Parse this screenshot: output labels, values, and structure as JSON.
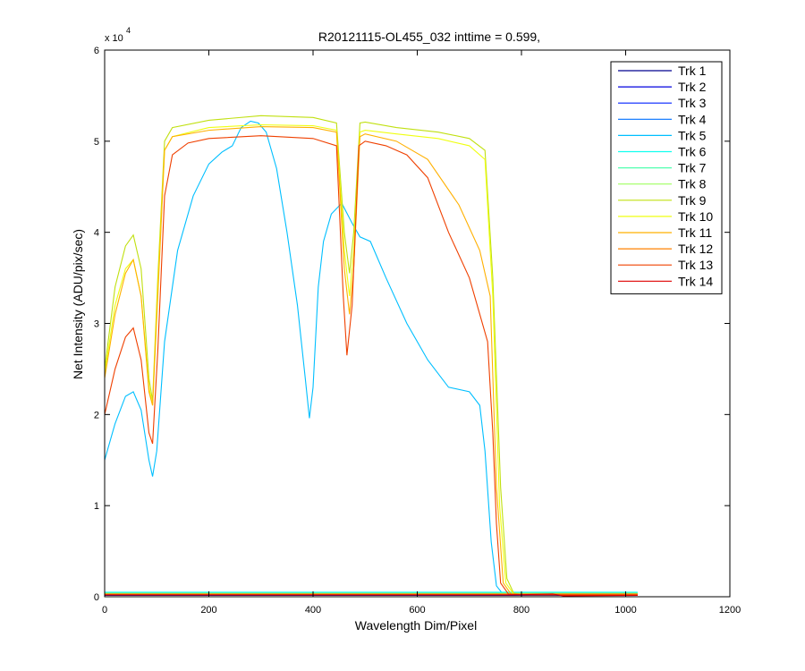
{
  "chart_data": {
    "type": "line",
    "title": "R20121115-OL455_032 inttime = 0.599,",
    "xlabel": "Wavelength Dim/Pixel",
    "ylabel": "Net Intensity (ADU/pix/sec)",
    "xlim": [
      0,
      1200
    ],
    "ylim": [
      0,
      60000
    ],
    "x_ticks": [
      "0",
      "200",
      "400",
      "600",
      "800",
      "1000",
      "1200"
    ],
    "y_ticks": [
      "0",
      "1",
      "2",
      "3",
      "4",
      "5",
      "6"
    ],
    "y_multiplier_base": "x 10",
    "y_multiplier_exp": "4",
    "grid": false,
    "legend_position": "top-right",
    "series": [
      {
        "name": "Trk 1",
        "color": "#00008F",
        "points": [
          [
            0,
            150
          ],
          [
            780,
            150
          ],
          [
            1023,
            150
          ]
        ]
      },
      {
        "name": "Trk 2",
        "color": "#0000DF",
        "points": [
          [
            0,
            250
          ],
          [
            780,
            250
          ],
          [
            1023,
            250
          ]
        ]
      },
      {
        "name": "Trk 3",
        "color": "#0020FF",
        "points": [
          [
            0,
            300
          ],
          [
            780,
            300
          ],
          [
            1023,
            300
          ]
        ]
      },
      {
        "name": "Trk 4",
        "color": "#0070FF",
        "points": [
          [
            0,
            350
          ],
          [
            780,
            350
          ],
          [
            1023,
            350
          ]
        ]
      },
      {
        "name": "Trk 5",
        "color": "#00BFFF",
        "points": [
          [
            0,
            15000
          ],
          [
            20,
            19000
          ],
          [
            40,
            22000
          ],
          [
            55,
            22500
          ],
          [
            70,
            20500
          ],
          [
            85,
            15000
          ],
          [
            92,
            13200
          ],
          [
            100,
            16000
          ],
          [
            115,
            28000
          ],
          [
            140,
            38000
          ],
          [
            170,
            44000
          ],
          [
            200,
            47500
          ],
          [
            225,
            48800
          ],
          [
            245,
            49500
          ],
          [
            262,
            51500
          ],
          [
            280,
            52200
          ],
          [
            295,
            52000
          ],
          [
            310,
            51000
          ],
          [
            330,
            47000
          ],
          [
            350,
            40000
          ],
          [
            370,
            32000
          ],
          [
            385,
            24000
          ],
          [
            393,
            19600
          ],
          [
            400,
            23000
          ],
          [
            410,
            34000
          ],
          [
            420,
            39000
          ],
          [
            435,
            42000
          ],
          [
            455,
            43200
          ],
          [
            475,
            41000
          ],
          [
            490,
            39500
          ],
          [
            510,
            39000
          ],
          [
            540,
            35000
          ],
          [
            580,
            30000
          ],
          [
            620,
            26000
          ],
          [
            660,
            23000
          ],
          [
            700,
            22500
          ],
          [
            720,
            21000
          ],
          [
            730,
            16000
          ],
          [
            742,
            6000
          ],
          [
            752,
            1200
          ],
          [
            765,
            250
          ],
          [
            800,
            200
          ],
          [
            1023,
            200
          ]
        ]
      },
      {
        "name": "Trk 6",
        "color": "#10FFEF",
        "points": [
          [
            0,
            500
          ],
          [
            780,
            500
          ],
          [
            1023,
            500
          ]
        ]
      },
      {
        "name": "Trk 7",
        "color": "#50FFAF",
        "points": [
          [
            0,
            400
          ],
          [
            780,
            400
          ],
          [
            1023,
            400
          ]
        ]
      },
      {
        "name": "Trk 8",
        "color": "#9FFF60",
        "points": [
          [
            0,
            350
          ],
          [
            780,
            350
          ],
          [
            1023,
            350
          ]
        ]
      },
      {
        "name": "Trk 9",
        "color": "#C0E010",
        "points": [
          [
            0,
            25000
          ],
          [
            20,
            34000
          ],
          [
            40,
            38500
          ],
          [
            55,
            39700
          ],
          [
            70,
            36000
          ],
          [
            85,
            24000
          ],
          [
            92,
            21500
          ],
          [
            102,
            35000
          ],
          [
            115,
            50000
          ],
          [
            130,
            51500
          ],
          [
            200,
            52300
          ],
          [
            300,
            52800
          ],
          [
            400,
            52600
          ],
          [
            445,
            52000
          ],
          [
            460,
            40000
          ],
          [
            470,
            35500
          ],
          [
            478,
            40000
          ],
          [
            490,
            52000
          ],
          [
            500,
            52100
          ],
          [
            560,
            51500
          ],
          [
            640,
            51000
          ],
          [
            700,
            50300
          ],
          [
            730,
            49000
          ],
          [
            745,
            35000
          ],
          [
            760,
            12000
          ],
          [
            772,
            2000
          ],
          [
            785,
            400
          ],
          [
            800,
            250
          ],
          [
            1023,
            200
          ]
        ]
      },
      {
        "name": "Trk 10",
        "color": "#EFFF10",
        "points": [
          [
            0,
            24500
          ],
          [
            20,
            32000
          ],
          [
            40,
            36000
          ],
          [
            55,
            37000
          ],
          [
            70,
            33000
          ],
          [
            85,
            23000
          ],
          [
            92,
            21000
          ],
          [
            102,
            34000
          ],
          [
            115,
            49000
          ],
          [
            130,
            50500
          ],
          [
            200,
            51500
          ],
          [
            300,
            51800
          ],
          [
            400,
            51700
          ],
          [
            445,
            51200
          ],
          [
            460,
            38000
          ],
          [
            470,
            33000
          ],
          [
            478,
            38000
          ],
          [
            490,
            51000
          ],
          [
            500,
            51200
          ],
          [
            560,
            50800
          ],
          [
            640,
            50300
          ],
          [
            700,
            49500
          ],
          [
            730,
            48000
          ],
          [
            745,
            33000
          ],
          [
            758,
            10000
          ],
          [
            770,
            1500
          ],
          [
            785,
            300
          ],
          [
            800,
            200
          ],
          [
            1023,
            200
          ]
        ]
      },
      {
        "name": "Trk 11",
        "color": "#FFB000",
        "points": [
          [
            0,
            24000
          ],
          [
            20,
            31000
          ],
          [
            40,
            35500
          ],
          [
            55,
            37000
          ],
          [
            70,
            33000
          ],
          [
            85,
            22500
          ],
          [
            92,
            21000
          ],
          [
            102,
            33000
          ],
          [
            115,
            49000
          ],
          [
            130,
            50500
          ],
          [
            200,
            51200
          ],
          [
            300,
            51600
          ],
          [
            400,
            51500
          ],
          [
            445,
            51000
          ],
          [
            460,
            36000
          ],
          [
            470,
            31000
          ],
          [
            478,
            36000
          ],
          [
            490,
            50500
          ],
          [
            500,
            50800
          ],
          [
            560,
            50000
          ],
          [
            620,
            48000
          ],
          [
            680,
            43000
          ],
          [
            720,
            38000
          ],
          [
            740,
            33000
          ],
          [
            752,
            12000
          ],
          [
            765,
            1500
          ],
          [
            780,
            300
          ],
          [
            800,
            200
          ],
          [
            1023,
            200
          ]
        ]
      },
      {
        "name": "Trk 12",
        "color": "#FF8000",
        "points": [
          [
            0,
            300
          ],
          [
            780,
            300
          ],
          [
            1023,
            300
          ]
        ]
      },
      {
        "name": "Trk 13",
        "color": "#EF4000",
        "points": [
          [
            0,
            20000
          ],
          [
            20,
            25000
          ],
          [
            40,
            28500
          ],
          [
            55,
            29500
          ],
          [
            70,
            26000
          ],
          [
            85,
            18000
          ],
          [
            92,
            16800
          ],
          [
            102,
            27000
          ],
          [
            115,
            44000
          ],
          [
            130,
            48500
          ],
          [
            160,
            49800
          ],
          [
            200,
            50300
          ],
          [
            300,
            50600
          ],
          [
            400,
            50300
          ],
          [
            445,
            49500
          ],
          [
            458,
            33000
          ],
          [
            465,
            26500
          ],
          [
            475,
            32000
          ],
          [
            488,
            49500
          ],
          [
            500,
            50000
          ],
          [
            540,
            49500
          ],
          [
            580,
            48500
          ],
          [
            620,
            46000
          ],
          [
            660,
            40000
          ],
          [
            700,
            35000
          ],
          [
            735,
            28000
          ],
          [
            745,
            18000
          ],
          [
            752,
            8000
          ],
          [
            760,
            1500
          ],
          [
            775,
            300
          ],
          [
            800,
            200
          ],
          [
            1023,
            200
          ]
        ]
      },
      {
        "name": "Trk 14",
        "color": "#DF0000",
        "points": [
          [
            0,
            200
          ],
          [
            780,
            200
          ],
          [
            860,
            300
          ],
          [
            880,
            100
          ],
          [
            1023,
            150
          ]
        ]
      }
    ]
  }
}
